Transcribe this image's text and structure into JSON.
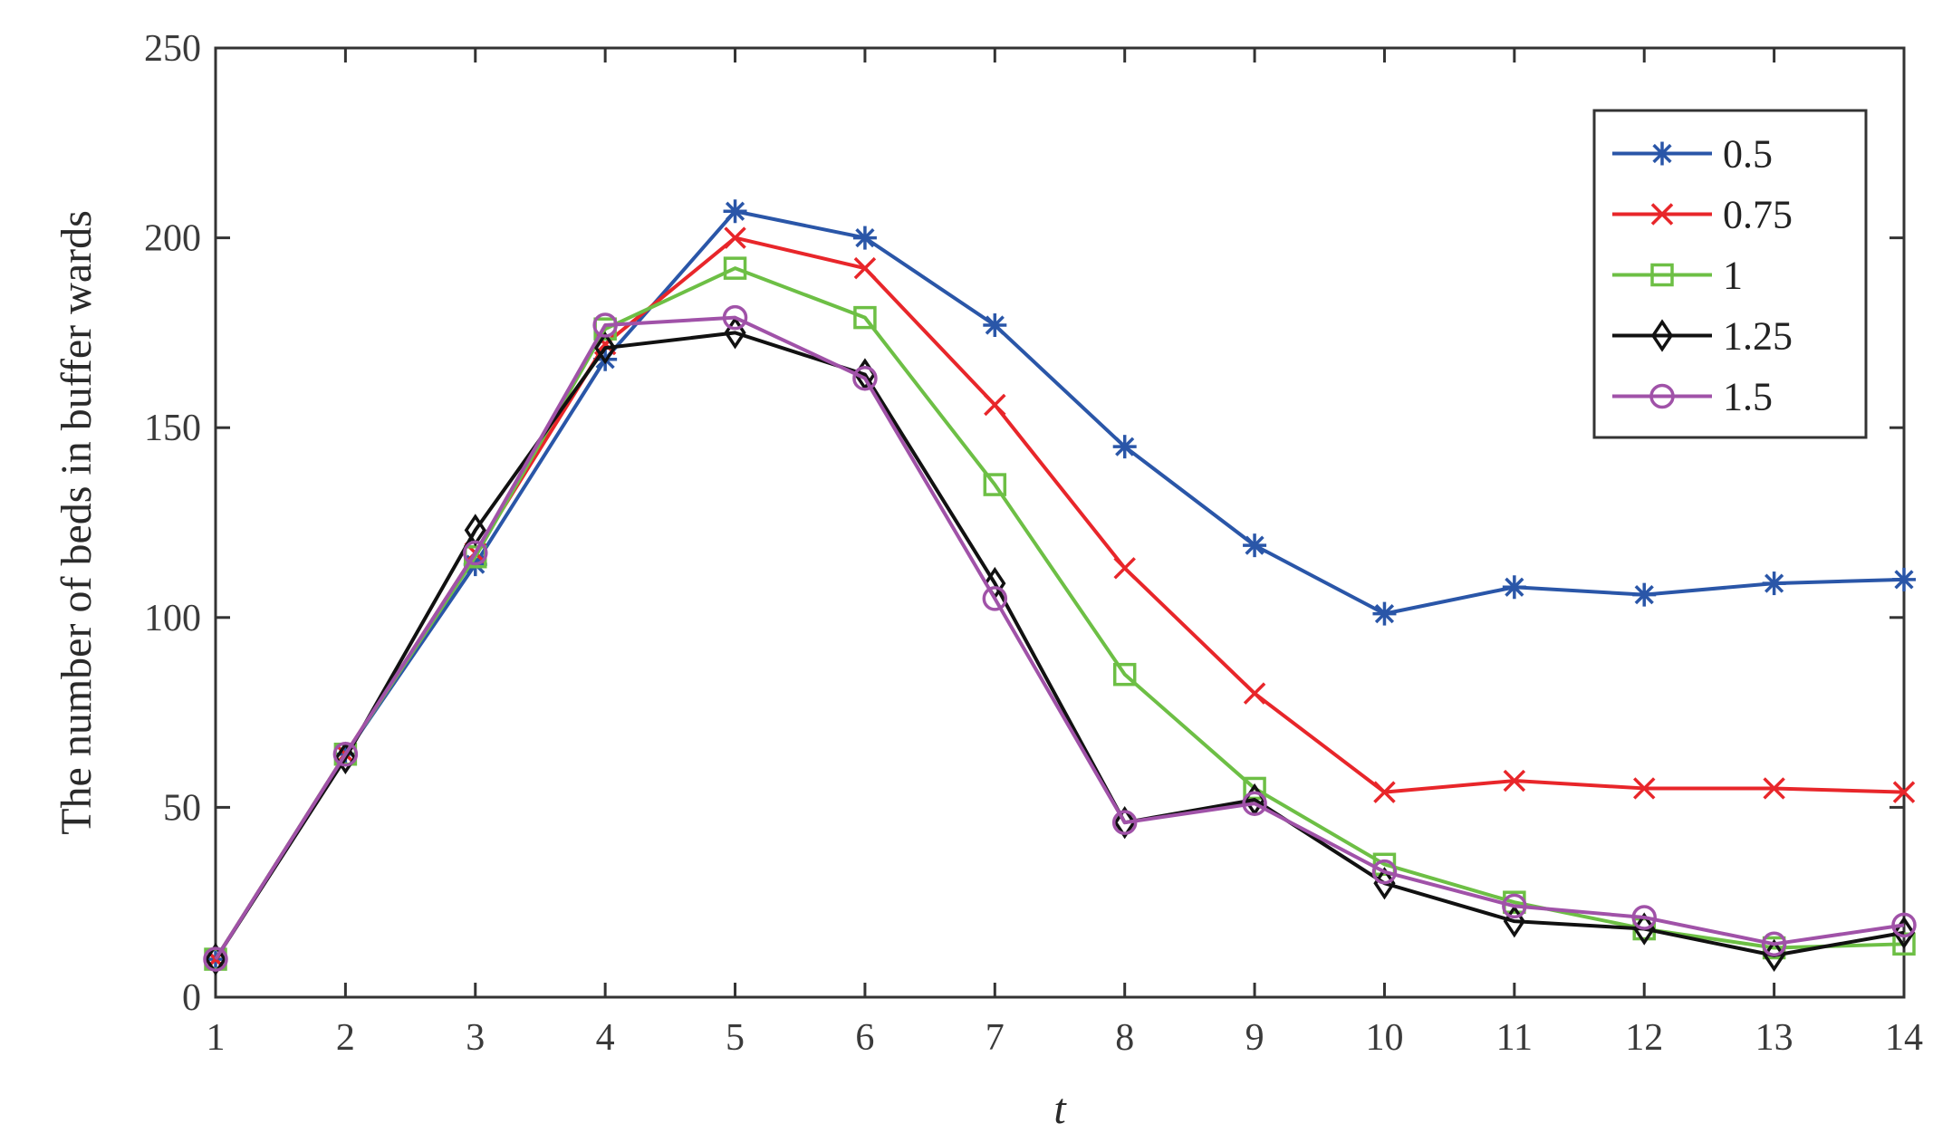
{
  "chart_data": {
    "type": "line",
    "title": "",
    "xlabel": "t",
    "ylabel": "The number of beds in buffer wards",
    "x": [
      1,
      2,
      3,
      4,
      5,
      6,
      7,
      8,
      9,
      10,
      11,
      12,
      13,
      14
    ],
    "xlim": [
      1,
      14
    ],
    "ylim": [
      0,
      250
    ],
    "yticks": [
      0,
      50,
      100,
      150,
      200,
      250
    ],
    "xticks": [
      1,
      2,
      3,
      4,
      5,
      6,
      7,
      8,
      9,
      10,
      11,
      12,
      13,
      14
    ],
    "grid": false,
    "legend_position": "top-right",
    "series": [
      {
        "name": "0.5",
        "color": "#2a56a8",
        "marker": "asterisk",
        "values": [
          10,
          64,
          114,
          168,
          207,
          200,
          177,
          145,
          119,
          101,
          108,
          106,
          109,
          110
        ]
      },
      {
        "name": "0.75",
        "color": "#e8262a",
        "marker": "x",
        "values": [
          10,
          64,
          117,
          172,
          200,
          192,
          156,
          113,
          80,
          54,
          57,
          55,
          55,
          54
        ]
      },
      {
        "name": "1",
        "color": "#6dbf45",
        "marker": "square",
        "values": [
          10,
          64,
          116,
          176,
          192,
          179,
          135,
          85,
          55,
          35,
          25,
          18,
          13,
          14
        ]
      },
      {
        "name": "1.25",
        "color": "#111111",
        "marker": "diamond",
        "values": [
          10,
          63,
          123,
          171,
          175,
          164,
          109,
          46,
          52,
          30,
          20,
          18,
          11,
          17
        ]
      },
      {
        "name": "1.5",
        "color": "#a052a8",
        "marker": "circle",
        "values": [
          10,
          64,
          117,
          177,
          179,
          163,
          105,
          46,
          51,
          33,
          24,
          21,
          14,
          19
        ]
      }
    ]
  }
}
